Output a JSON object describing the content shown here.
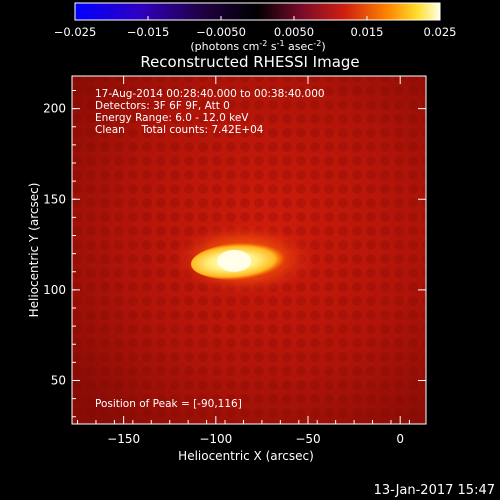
{
  "chart_data": {
    "type": "heatmap",
    "title": "Reconstructed RHESSI Image",
    "xlabel": "Heliocentric X (arcsec)",
    "ylabel": "Heliocentric Y (arcsec)",
    "xlim": [
      -178,
      14
    ],
    "ylim": [
      26,
      218
    ],
    "x_ticks": [
      -150,
      -100,
      -50,
      0
    ],
    "y_ticks": [
      50,
      100,
      150,
      200
    ],
    "colorbar": {
      "min": -0.025,
      "max": 0.025,
      "ticks": [
        "-0.025",
        "-0.015",
        "-0.0050",
        "0.0050",
        "0.015",
        "0.025"
      ],
      "tick_values": [
        -0.025,
        -0.015,
        -0.005,
        0.005,
        0.015,
        0.025
      ],
      "label_main": "(photons cm",
      "label_exp1": "-2",
      "label_mid": " s",
      "label_exp2": "-1",
      "label_mid2": " asec",
      "label_exp3": "-2",
      "label_end": ")"
    },
    "annotations": [
      "17-Aug-2014 00:28:40.000 to 00:38:40.000",
      "Detectors: 3F 6F 9F, Att 0",
      "Energy Range: 6.0 - 12.0 keV",
      "Clean     Total counts: 7.42E+04"
    ],
    "peak_label": "Position of Peak = [-90,116]",
    "peak": [
      -90,
      116
    ],
    "source": {
      "description": "elongated bright source",
      "x_range": [
        -108,
        -62
      ],
      "y_center": 116,
      "peak_value": 0.025
    },
    "colors": {
      "background": "#000000",
      "text": "#ffffff",
      "image_base": "#c0160a",
      "source_core": "#ffffcc"
    }
  },
  "timestamp": "13-Jan-2017 15:47"
}
